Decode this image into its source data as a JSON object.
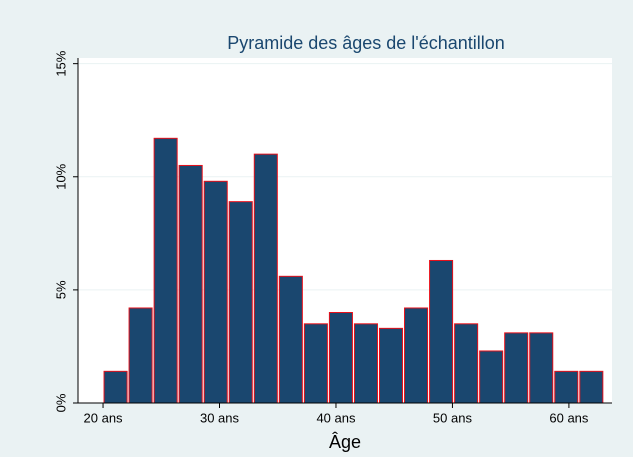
{
  "chart_data": {
    "type": "histogram",
    "title": "Pyramide des âges de l'échantillon",
    "x_label": "Âge",
    "bins": [
      20,
      22.15,
      24.3,
      26.45,
      28.6,
      30.75,
      32.9,
      35.05,
      37.2,
      39.35,
      41.5,
      43.65,
      45.8,
      47.95,
      50.1,
      52.25,
      54.4,
      56.55,
      58.7,
      60.85,
      63
    ],
    "values": [
      1.4,
      4.2,
      11.7,
      10.5,
      9.8,
      8.9,
      11.0,
      5.6,
      3.5,
      4.0,
      3.5,
      3.3,
      4.2,
      6.3,
      3.5,
      2.3,
      3.1,
      3.1,
      1.4,
      1.4
    ],
    "color": "#1a476f",
    "edge_color": "#e8101a",
    "xlim": [
      17.85,
      63.7
    ],
    "ylim": [
      0,
      15.25
    ],
    "xticks": [
      {
        "value": 20,
        "label": "20 ans"
      },
      {
        "value": 30,
        "label": "30 ans"
      },
      {
        "value": 40,
        "label": "40 ans"
      },
      {
        "value": 50,
        "label": "50 ans"
      },
      {
        "value": 60,
        "label": "60 ans"
      }
    ],
    "yticks": [
      {
        "value": 0,
        "label": "0%"
      },
      {
        "value": 5,
        "label": "5%"
      },
      {
        "value": 10,
        "label": "10%"
      },
      {
        "value": 15,
        "label": "15%"
      }
    ],
    "grid": true
  }
}
